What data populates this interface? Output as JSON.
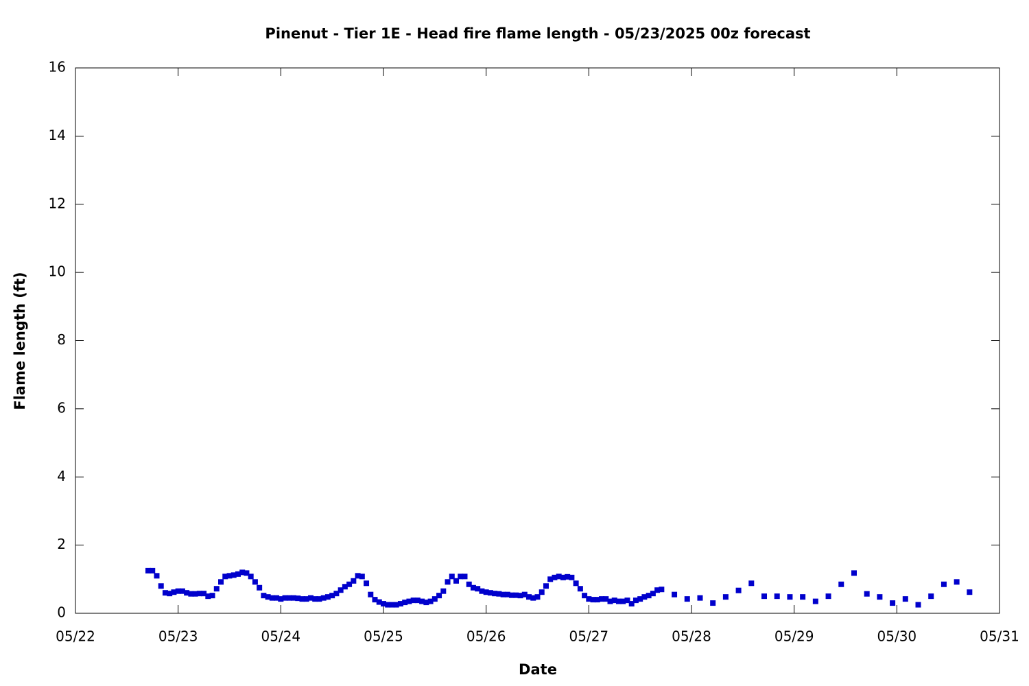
{
  "chart_data": {
    "type": "scatter",
    "title": "Pinenut - Tier 1E - Head fire flame length - 05/23/2025 00z forecast",
    "x_label": "Date",
    "y_label": "Flame length (ft)",
    "color": "#0000cc",
    "xlim": [
      0,
      216
    ],
    "xticks": [
      {
        "value": 0,
        "label": "05/22"
      },
      {
        "value": 24,
        "label": "05/23"
      },
      {
        "value": 48,
        "label": "05/24"
      },
      {
        "value": 72,
        "label": "05/25"
      },
      {
        "value": 96,
        "label": "05/26"
      },
      {
        "value": 120,
        "label": "05/27"
      },
      {
        "value": 144,
        "label": "05/28"
      },
      {
        "value": 168,
        "label": "05/29"
      },
      {
        "value": 192,
        "label": "05/30"
      },
      {
        "value": 216,
        "label": "05/31"
      }
    ],
    "ylim": [
      0,
      16
    ],
    "yticks": [
      0,
      2,
      4,
      6,
      8,
      10,
      12,
      14,
      16
    ],
    "x": [
      17,
      18,
      19,
      20,
      21,
      22,
      23,
      24,
      25,
      26,
      27,
      28,
      29,
      30,
      31,
      32,
      33,
      34,
      35,
      36,
      37,
      38,
      39,
      40,
      41,
      42,
      43,
      44,
      45,
      46,
      47,
      48,
      49,
      50,
      51,
      52,
      53,
      54,
      55,
      56,
      57,
      58,
      59,
      60,
      61,
      62,
      63,
      64,
      65,
      66,
      67,
      68,
      69,
      70,
      71,
      72,
      73,
      74,
      75,
      76,
      77,
      78,
      79,
      80,
      81,
      82,
      83,
      84,
      85,
      86,
      87,
      88,
      89,
      90,
      91,
      92,
      93,
      94,
      95,
      96,
      97,
      98,
      99,
      100,
      101,
      102,
      103,
      104,
      105,
      106,
      107,
      108,
      109,
      110,
      111,
      112,
      113,
      114,
      115,
      116,
      117,
      118,
      119,
      120,
      121,
      122,
      123,
      124,
      125,
      126,
      127,
      128,
      129,
      130,
      131,
      132,
      133,
      134,
      135,
      136,
      137,
      140,
      143,
      146,
      149,
      152,
      155,
      158,
      161,
      164,
      167,
      170,
      173,
      176,
      179,
      182,
      185,
      188,
      191,
      194,
      197,
      200,
      203,
      206,
      209
    ],
    "values": [
      1.25,
      1.25,
      1.1,
      0.8,
      0.6,
      0.58,
      0.62,
      0.65,
      0.65,
      0.6,
      0.57,
      0.57,
      0.58,
      0.58,
      0.5,
      0.52,
      0.72,
      0.92,
      1.08,
      1.1,
      1.12,
      1.15,
      1.2,
      1.18,
      1.08,
      0.92,
      0.75,
      0.52,
      0.48,
      0.45,
      0.45,
      0.42,
      0.45,
      0.45,
      0.45,
      0.44,
      0.42,
      0.42,
      0.45,
      0.42,
      0.42,
      0.45,
      0.48,
      0.52,
      0.58,
      0.68,
      0.78,
      0.85,
      0.95,
      1.1,
      1.08,
      0.88,
      0.55,
      0.4,
      0.33,
      0.28,
      0.25,
      0.25,
      0.25,
      0.28,
      0.32,
      0.35,
      0.38,
      0.38,
      0.35,
      0.32,
      0.35,
      0.42,
      0.52,
      0.65,
      0.92,
      1.08,
      0.95,
      1.08,
      1.08,
      0.85,
      0.75,
      0.72,
      0.65,
      0.62,
      0.6,
      0.58,
      0.57,
      0.55,
      0.55,
      0.53,
      0.53,
      0.52,
      0.55,
      0.48,
      0.45,
      0.48,
      0.62,
      0.8,
      1.0,
      1.05,
      1.08,
      1.05,
      1.07,
      1.05,
      0.88,
      0.72,
      0.52,
      0.42,
      0.4,
      0.4,
      0.42,
      0.42,
      0.35,
      0.38,
      0.35,
      0.35,
      0.38,
      0.28,
      0.38,
      0.42,
      0.48,
      0.52,
      0.58,
      0.68,
      0.7,
      0.55,
      0.42,
      0.45,
      0.3,
      0.48,
      0.67,
      0.88,
      0.5,
      0.5,
      0.48,
      0.48,
      0.35,
      0.5,
      0.85,
      1.18,
      0.57,
      0.48,
      0.3,
      0.42,
      0.25,
      0.5,
      0.85,
      0.92,
      0.62
    ]
  }
}
